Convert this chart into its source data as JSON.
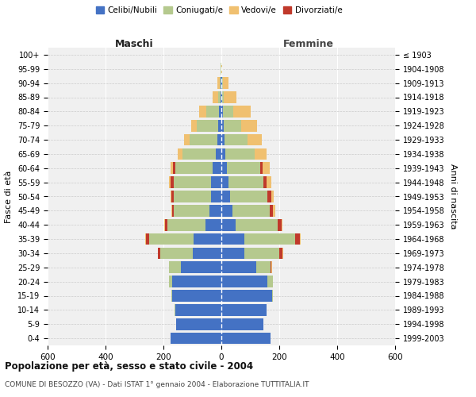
{
  "age_groups": [
    "0-4",
    "5-9",
    "10-14",
    "15-19",
    "20-24",
    "25-29",
    "30-34",
    "35-39",
    "40-44",
    "45-49",
    "50-54",
    "55-59",
    "60-64",
    "65-69",
    "70-74",
    "75-79",
    "80-84",
    "85-89",
    "90-94",
    "95-99",
    "100+"
  ],
  "birth_years": [
    "1999-2003",
    "1994-1998",
    "1989-1993",
    "1984-1988",
    "1979-1983",
    "1974-1978",
    "1969-1973",
    "1964-1968",
    "1959-1963",
    "1954-1958",
    "1949-1953",
    "1944-1948",
    "1939-1943",
    "1934-1938",
    "1929-1933",
    "1924-1928",
    "1919-1923",
    "1914-1918",
    "1909-1913",
    "1904-1908",
    "≤ 1903"
  ],
  "colors": {
    "celibi": "#4472c4",
    "coniugati": "#b5c98e",
    "vedovi": "#f0c070",
    "divorziati": "#c0392b"
  },
  "maschi": {
    "celibi": [
      175,
      155,
      160,
      170,
      170,
      140,
      100,
      95,
      55,
      40,
      35,
      35,
      30,
      20,
      15,
      10,
      8,
      4,
      2,
      1,
      1
    ],
    "coniugati": [
      0,
      0,
      1,
      2,
      10,
      40,
      110,
      155,
      130,
      125,
      130,
      130,
      130,
      115,
      95,
      75,
      45,
      8,
      4,
      1,
      0
    ],
    "vedovi": [
      0,
      0,
      0,
      0,
      0,
      2,
      2,
      2,
      2,
      2,
      3,
      5,
      8,
      15,
      20,
      20,
      25,
      18,
      8,
      2,
      0
    ],
    "divorziati": [
      0,
      0,
      0,
      0,
      0,
      0,
      8,
      10,
      10,
      5,
      8,
      10,
      8,
      0,
      0,
      0,
      0,
      0,
      0,
      0,
      0
    ]
  },
  "femmine": {
    "nubili": [
      170,
      145,
      155,
      175,
      160,
      120,
      80,
      80,
      50,
      38,
      30,
      25,
      20,
      15,
      10,
      8,
      5,
      3,
      2,
      1,
      1
    ],
    "coniugate": [
      0,
      0,
      1,
      2,
      18,
      50,
      120,
      175,
      145,
      130,
      130,
      120,
      115,
      100,
      80,
      60,
      35,
      5,
      3,
      0,
      0
    ],
    "vedove": [
      0,
      0,
      0,
      0,
      0,
      2,
      3,
      5,
      5,
      8,
      10,
      18,
      25,
      40,
      50,
      55,
      60,
      45,
      20,
      3,
      0
    ],
    "divorziate": [
      0,
      0,
      0,
      0,
      0,
      2,
      10,
      15,
      12,
      10,
      12,
      10,
      8,
      0,
      0,
      0,
      0,
      0,
      0,
      0,
      0
    ]
  },
  "xlim": 600,
  "title": "Popolazione per età, sesso e stato civile - 2004",
  "subtitle": "COMUNE DI BESOZZO (VA) - Dati ISTAT 1° gennaio 2004 - Elaborazione TUTTITALIA.IT",
  "ylabel_left": "Fasce di età",
  "ylabel_right": "Anni di nascita",
  "legend_labels": [
    "Celibi/Nubili",
    "Coniugati/e",
    "Vedovi/e",
    "Divorziati/e"
  ],
  "maschi_header": "Maschi",
  "femmine_header": "Femmine"
}
